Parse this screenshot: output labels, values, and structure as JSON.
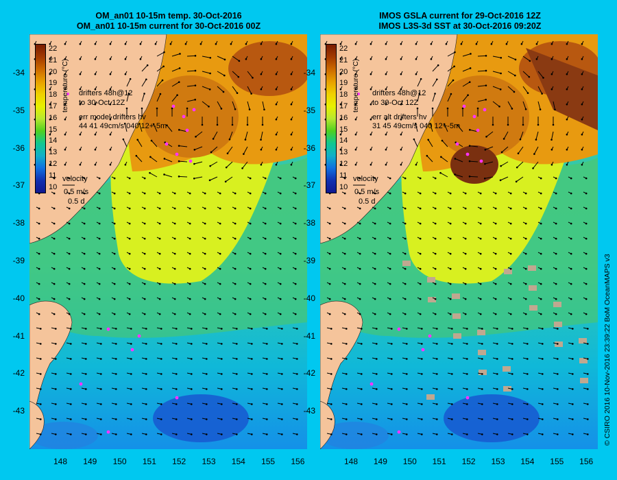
{
  "panels": [
    {
      "title_line1": "OM_an01 10-15m temp. 30-Oct-2016",
      "title_line2": "OM_an01 10-15m current for 30-Oct-2016 00Z",
      "drifters_label": "drifters 48h@12",
      "drifters_to": "to 30-Oct 12Z",
      "err_line1": "err model drifters hv",
      "err_line2": "44 41 49cm/s 040 12+-5m",
      "velocity_label": "velocity",
      "velocity_value": "0.5 m/s",
      "velocity_time": "0.5 d",
      "colorbar_label": "temperature (°C)"
    },
    {
      "title_line1": "IMOS GSLA current for 29-Oct-2016 12Z",
      "title_line2": "IMOS L3S-3d SST at 30-Oct-2016 09:20Z",
      "drifters_label": "drifters 48h@12",
      "drifters_to": "to 30-Oct 12Z",
      "err_line1": "err alt drifters hv",
      "err_line2": "31 45 49cm/s 040 12+-5m",
      "velocity_label": "velocity",
      "velocity_value": "0.5 m/s",
      "velocity_time": "0.5 d",
      "colorbar_label": "temperature (°C)"
    }
  ],
  "latitude_ticks": [
    "-34",
    "-35",
    "-36",
    "-37",
    "-38",
    "-39",
    "-40",
    "-41",
    "-42",
    "-43"
  ],
  "longitude_ticks": [
    "148",
    "149",
    "150",
    "151",
    "152",
    "153",
    "154",
    "155",
    "156"
  ],
  "colorbar_ticks": [
    "22",
    "21",
    "20",
    "19",
    "18",
    "17",
    "16",
    "15",
    "14",
    "13",
    "12",
    "11",
    "10"
  ],
  "colors": {
    "background": "#00c8f0",
    "land": "#f5c49b",
    "drifter": "#ff33ff",
    "colorbar": [
      "#7a1c00",
      "#a33a00",
      "#cc6a00",
      "#e8a000",
      "#f0d000",
      "#e8f000",
      "#b8e830",
      "#50d020",
      "#10c890",
      "#10b0c8",
      "#1070e0",
      "#1030b0",
      "#101890"
    ]
  },
  "copyright": "© CSIRO 2016   10-Nov-2016 23:39:22 BoM OceanMAPS v3"
}
